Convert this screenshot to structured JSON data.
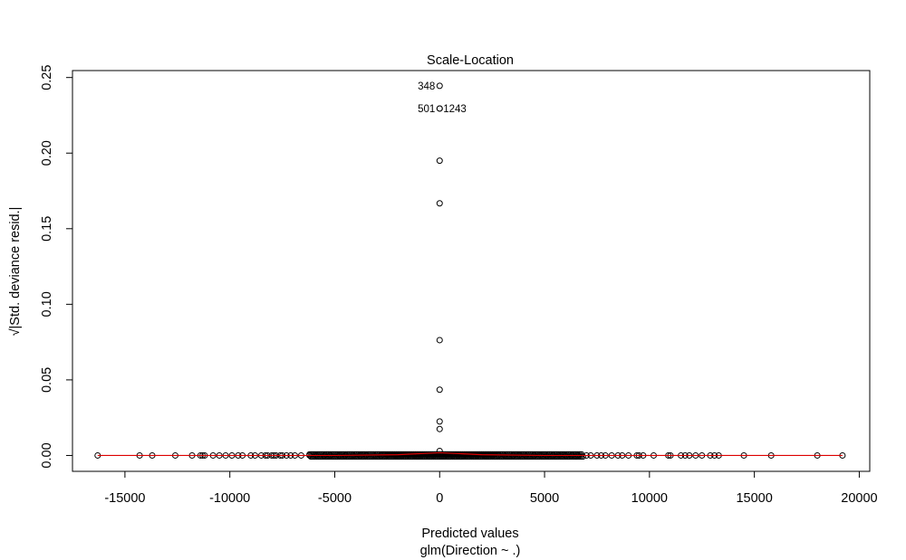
{
  "chart_data": {
    "type": "scatter",
    "title": "Scale-Location",
    "xlabel": "Predicted values",
    "sublabel": "glm(Direction ~ .)",
    "ylabel": "√|Std. deviance resid.|",
    "xlim": [
      -17500,
      20500
    ],
    "ylim": [
      -0.0105,
      0.2546
    ],
    "x_ticks": [
      -15000,
      -10000,
      -5000,
      0,
      5000,
      10000,
      15000,
      20000
    ],
    "x_tick_labels": [
      "-15000",
      "-10000",
      "-5000",
      "0",
      "5000",
      "10000",
      "15000",
      "20000"
    ],
    "y_ticks": [
      0.0,
      0.05,
      0.1,
      0.15,
      0.2,
      0.25
    ],
    "y_tick_labels": [
      "0.00",
      "0.05",
      "0.10",
      "0.15",
      "0.20",
      "0.25"
    ],
    "grid": false,
    "colors": {
      "points": "#000000",
      "smoother": "#dd0000",
      "axis": "#000000"
    },
    "outlier_points": [
      {
        "x": 0,
        "y": 0.2445,
        "label": "348",
        "label_side": "left"
      },
      {
        "x": 0,
        "y": 0.2295,
        "label": "501",
        "label_side": "left"
      },
      {
        "x": 0,
        "y": 0.2295,
        "label": "1243",
        "label_side": "right"
      },
      {
        "x": 0,
        "y": 0.195
      },
      {
        "x": 0,
        "y": 0.1668
      },
      {
        "x": 0,
        "y": 0.0763
      },
      {
        "x": 0,
        "y": 0.0435
      },
      {
        "x": 0,
        "y": 0.0225
      },
      {
        "x": 0,
        "y": 0.0175
      },
      {
        "x": 0,
        "y": 0.003
      }
    ],
    "baseline_points_x": [
      -16300,
      -14300,
      -13700,
      -12600,
      -11800,
      -11400,
      -11300,
      -11200,
      -10800,
      -10500,
      -10200,
      -9900,
      -9600,
      -9400,
      -9000,
      -8800,
      -8500,
      -8300,
      -8200,
      -8000,
      -7900,
      -7800,
      -7600,
      -7500,
      -7300,
      -7100,
      -6900,
      -6600,
      -6200,
      -5900,
      -5500,
      -5200,
      -4800,
      -4500,
      -4100,
      -3800,
      -3500,
      -3100,
      -2800,
      -2500,
      -2100,
      -1800,
      -1500,
      -1200,
      -900,
      -600,
      -300,
      300,
      600,
      900,
      1200,
      1500,
      1800,
      2100,
      2500,
      2800,
      3100,
      3500,
      3800,
      4100,
      4500,
      4800,
      5100,
      5400,
      5700,
      6000,
      6300,
      6600,
      7000,
      7200,
      7500,
      7700,
      7900,
      8200,
      8500,
      8700,
      9000,
      9400,
      9500,
      9700,
      10200,
      10900,
      11000,
      11500,
      11700,
      11900,
      12200,
      12500,
      12900,
      13100,
      13300,
      14500,
      15800,
      18000,
      19200
    ],
    "smoother_line": {
      "x": [
        -16300,
        -5000,
        -2000,
        0,
        2000,
        5000,
        19200
      ],
      "y": [
        0.0,
        0.0,
        0.0005,
        0.0018,
        0.0005,
        0.0,
        0.0
      ]
    }
  }
}
